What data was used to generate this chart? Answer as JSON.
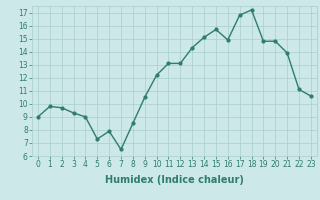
{
  "x": [
    0,
    1,
    2,
    3,
    4,
    5,
    6,
    7,
    8,
    9,
    10,
    11,
    12,
    13,
    14,
    15,
    16,
    17,
    18,
    19,
    20,
    21,
    22,
    23
  ],
  "y": [
    9.0,
    9.8,
    9.7,
    9.3,
    9.0,
    7.3,
    7.9,
    6.5,
    8.5,
    10.5,
    12.2,
    13.1,
    13.1,
    14.3,
    15.1,
    15.7,
    14.9,
    16.8,
    17.2,
    14.8,
    14.8,
    13.9,
    11.1,
    10.6
  ],
  "line_color": "#2e7d6e",
  "marker": "o",
  "marker_size": 2,
  "bg_color": "#cce8e8",
  "grid_color": "#aacece",
  "xlabel": "Humidex (Indice chaleur)",
  "xlim": [
    -0.5,
    23.5
  ],
  "ylim": [
    6,
    17.5
  ],
  "yticks": [
    6,
    7,
    8,
    9,
    10,
    11,
    12,
    13,
    14,
    15,
    16,
    17
  ],
  "xticks": [
    0,
    1,
    2,
    3,
    4,
    5,
    6,
    7,
    8,
    9,
    10,
    11,
    12,
    13,
    14,
    15,
    16,
    17,
    18,
    19,
    20,
    21,
    22,
    23
  ],
  "tick_fontsize": 5.5,
  "xlabel_fontsize": 7,
  "line_width": 1.0
}
